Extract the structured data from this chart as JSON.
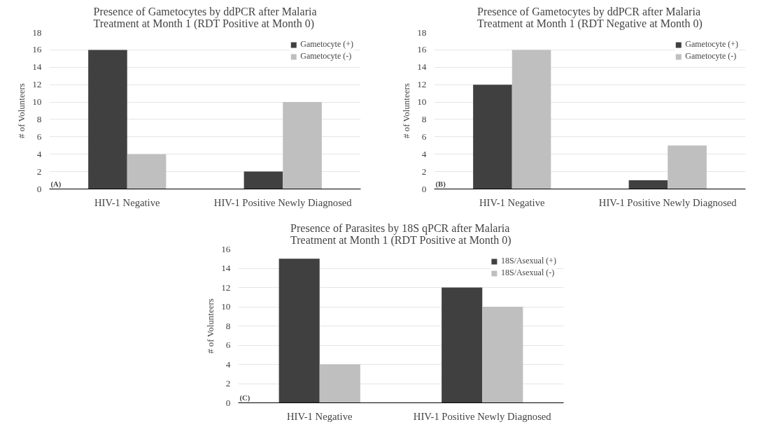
{
  "chart_data": [
    {
      "type": "bar",
      "title": "Presence of Gametocytes by ddPCR after Malaria\nTreatment at Month 1 (RDT Positive at Month 0)",
      "ylabel": "# of Volunteers",
      "categories": [
        "HIV-1 Negative",
        "HIV-1 Positive Newly Diagnosed"
      ],
      "series": [
        {
          "name": "Gametocyte (+)",
          "color": "#404040",
          "values": [
            16,
            2
          ]
        },
        {
          "name": "Gametocyte (-)",
          "color": "#bfbfbf",
          "values": [
            4,
            10
          ]
        }
      ],
      "ylim": [
        0,
        18
      ],
      "yticks": [
        0,
        2,
        4,
        6,
        8,
        10,
        12,
        14,
        16,
        18
      ],
      "grid": "y",
      "legend": "top right",
      "annotations": [
        "(A)"
      ]
    },
    {
      "type": "bar",
      "title": "Presence of Gametocytes by ddPCR after Malaria\nTreatment at Month 1 (RDT Negative at Month 0)",
      "ylabel": "# of Volunteers",
      "categories": [
        "HIV-1 Negative",
        "HIV-1 Positive Newly Diagnosed"
      ],
      "series": [
        {
          "name": "Gametocyte (+)",
          "color": "#404040",
          "values": [
            12,
            1
          ]
        },
        {
          "name": "Gametocyte (-)",
          "color": "#bfbfbf",
          "values": [
            16,
            5
          ]
        }
      ],
      "ylim": [
        0,
        18
      ],
      "yticks": [
        0,
        2,
        4,
        6,
        8,
        10,
        12,
        14,
        16,
        18
      ],
      "grid": "y",
      "legend": "top right",
      "annotations": [
        "(B)"
      ]
    },
    {
      "type": "bar",
      "title": "Presence of Parasites by 18S qPCR after Malaria\nTreatment at Month 1 (RDT Positive at Month 0)",
      "ylabel": "# of Volunteers",
      "categories": [
        "HIV-1 Negative",
        "HIV-1 Positive Newly Diagnosed"
      ],
      "series": [
        {
          "name": "18S/Asexual (+)",
          "color": "#404040",
          "values": [
            15,
            12
          ]
        },
        {
          "name": "18S/Asexual (-)",
          "color": "#bfbfbf",
          "values": [
            4,
            10
          ]
        }
      ],
      "ylim": [
        0,
        16
      ],
      "yticks": [
        0,
        2,
        4,
        6,
        8,
        10,
        12,
        14,
        16
      ],
      "grid": "y",
      "legend": "top right",
      "annotations": [
        "(C)"
      ]
    }
  ]
}
